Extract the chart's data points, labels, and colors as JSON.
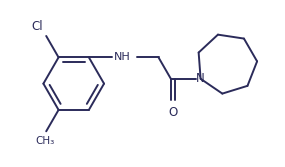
{
  "bg_color": "#ffffff",
  "line_color": "#2b2b5a",
  "text_color": "#2b2b5a",
  "line_width": 1.4,
  "figsize": [
    2.85,
    1.67
  ],
  "dpi": 100,
  "xlim": [
    0,
    10
  ],
  "ylim": [
    0,
    5.85
  ]
}
